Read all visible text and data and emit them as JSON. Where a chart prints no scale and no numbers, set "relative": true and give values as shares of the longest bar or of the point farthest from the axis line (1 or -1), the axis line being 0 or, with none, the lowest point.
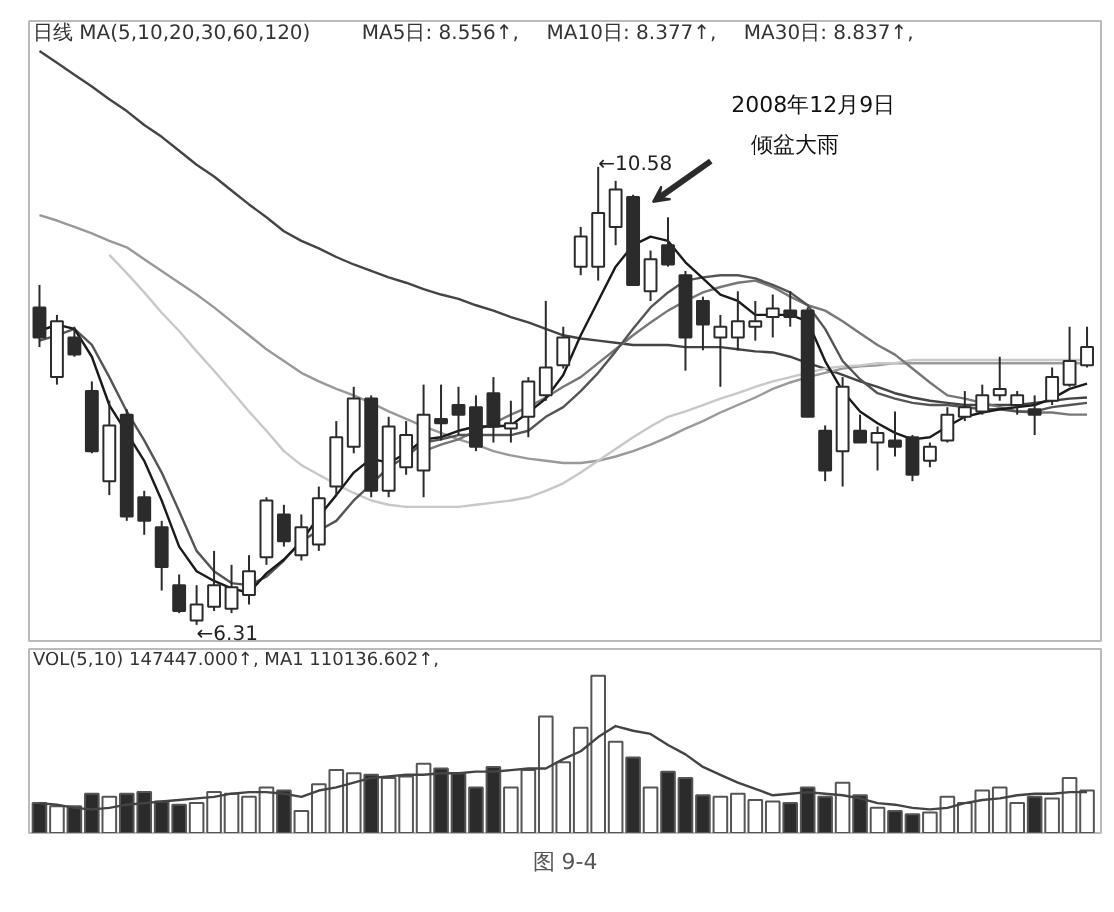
{
  "chart_data": [
    {
      "type": "candlestick",
      "tick_labels": false,
      "ylim": [
        6.16,
        11.94
      ],
      "categories": [
        null,
        null,
        null,
        null,
        null,
        null,
        null,
        null,
        null,
        null,
        null,
        null,
        null,
        null,
        null,
        null,
        null,
        null,
        null,
        null,
        null,
        null,
        null,
        null,
        null,
        null,
        null,
        null,
        null,
        null,
        null,
        null,
        null,
        null,
        null,
        null,
        null,
        null,
        null,
        null,
        null,
        null,
        null,
        null,
        null,
        null,
        null,
        null,
        null,
        null,
        null,
        null,
        null,
        null,
        null,
        null,
        null,
        null,
        null,
        null,
        null
      ],
      "ohlc": [
        [
          9.27,
          9.48,
          8.9,
          8.99
        ],
        [
          8.62,
          9.2,
          8.55,
          9.14
        ],
        [
          8.99,
          9.09,
          8.81,
          8.83
        ],
        [
          8.49,
          8.58,
          7.91,
          7.93
        ],
        [
          7.65,
          8.4,
          7.52,
          8.17
        ],
        [
          8.27,
          8.32,
          7.28,
          7.32
        ],
        [
          7.5,
          7.56,
          7.15,
          7.28
        ],
        [
          7.22,
          7.28,
          6.63,
          6.85
        ],
        [
          6.68,
          6.78,
          6.42,
          6.44
        ],
        [
          6.35,
          6.68,
          6.31,
          6.5
        ],
        [
          6.48,
          7.0,
          6.44,
          6.68
        ],
        [
          6.46,
          6.87,
          6.42,
          6.66
        ],
        [
          6.59,
          6.96,
          6.5,
          6.81
        ],
        [
          6.94,
          7.5,
          6.87,
          7.47
        ],
        [
          7.34,
          7.43,
          7.04,
          7.09
        ],
        [
          6.96,
          7.34,
          6.91,
          7.22
        ],
        [
          7.06,
          7.6,
          7.0,
          7.49
        ],
        [
          7.6,
          8.21,
          7.52,
          8.06
        ],
        [
          7.97,
          8.53,
          7.91,
          8.42
        ],
        [
          8.42,
          8.45,
          7.5,
          7.56
        ],
        [
          7.56,
          8.25,
          7.5,
          8.16
        ],
        [
          7.78,
          8.21,
          7.71,
          8.08
        ],
        [
          7.75,
          8.55,
          7.5,
          8.27
        ],
        [
          8.23,
          8.55,
          8.03,
          8.19
        ],
        [
          8.36,
          8.53,
          8.08,
          8.27
        ],
        [
          8.34,
          8.45,
          7.93,
          7.97
        ],
        [
          8.47,
          8.62,
          8.01,
          8.16
        ],
        [
          8.14,
          8.4,
          8.01,
          8.19
        ],
        [
          8.25,
          8.62,
          8.06,
          8.58
        ],
        [
          8.45,
          9.33,
          8.4,
          8.71
        ],
        [
          8.73,
          9.09,
          8.7,
          8.99
        ],
        [
          9.65,
          10.02,
          9.57,
          9.93
        ],
        [
          9.65,
          10.58,
          9.52,
          10.15
        ],
        [
          10.02,
          10.45,
          9.85,
          10.37
        ],
        [
          10.3,
          10.32,
          9.48,
          9.48
        ],
        [
          9.42,
          9.8,
          9.33,
          9.72
        ],
        [
          9.85,
          10.11,
          9.65,
          9.67
        ],
        [
          9.57,
          9.61,
          8.68,
          8.99
        ],
        [
          9.33,
          9.37,
          8.87,
          9.11
        ],
        [
          8.99,
          9.2,
          8.53,
          9.09
        ],
        [
          8.99,
          9.42,
          8.87,
          9.14
        ],
        [
          9.09,
          9.33,
          8.96,
          9.14
        ],
        [
          9.18,
          9.39,
          8.99,
          9.26
        ],
        [
          9.24,
          9.42,
          9.09,
          9.18
        ],
        [
          9.24,
          9.27,
          8.25,
          8.25
        ],
        [
          8.12,
          8.17,
          7.65,
          7.75
        ],
        [
          7.93,
          8.62,
          7.6,
          8.53
        ],
        [
          8.12,
          8.27,
          8.01,
          8.01
        ],
        [
          8.01,
          8.16,
          7.75,
          8.1
        ],
        [
          8.03,
          8.3,
          7.88,
          7.97
        ],
        [
          8.06,
          8.08,
          7.65,
          7.71
        ],
        [
          7.84,
          8.01,
          7.78,
          7.97
        ],
        [
          8.03,
          8.34,
          8.01,
          8.27
        ],
        [
          8.25,
          8.49,
          8.21,
          8.34
        ],
        [
          8.3,
          8.55,
          8.27,
          8.45
        ],
        [
          8.45,
          8.81,
          8.4,
          8.51
        ],
        [
          8.36,
          8.49,
          8.27,
          8.45
        ],
        [
          8.32,
          8.45,
          8.08,
          8.27
        ],
        [
          8.4,
          8.71,
          8.36,
          8.62
        ],
        [
          8.55,
          9.09,
          8.53,
          8.77
        ],
        [
          8.73,
          9.09,
          8.71,
          8.9
        ]
      ],
      "colors": [
        "#2b2b2b",
        "#ffffff",
        "#2b2b2b",
        "#2b2b2b",
        "#ffffff",
        "#2b2b2b",
        "#2b2b2b",
        "#2b2b2b",
        "#2b2b2b",
        "#ffffff",
        "#ffffff",
        "#ffffff",
        "#ffffff",
        "#ffffff",
        "#2b2b2b",
        "#ffffff",
        "#ffffff",
        "#ffffff",
        "#ffffff",
        "#2b2b2b",
        "#ffffff",
        "#ffffff",
        "#ffffff",
        "#2b2b2b",
        "#2b2b2b",
        "#2b2b2b",
        "#2b2b2b",
        "#ffffff",
        "#ffffff",
        "#ffffff",
        "#ffffff",
        "#ffffff",
        "#ffffff",
        "#ffffff",
        "#2b2b2b",
        "#ffffff",
        "#2b2b2b",
        "#2b2b2b",
        "#2b2b2b",
        "#ffffff",
        "#ffffff",
        "#ffffff",
        "#ffffff",
        "#2b2b2b",
        "#2b2b2b",
        "#2b2b2b",
        "#ffffff",
        "#2b2b2b",
        "#ffffff",
        "#2b2b2b",
        "#2b2b2b",
        "#ffffff",
        "#ffffff",
        "#ffffff",
        "#ffffff",
        "#ffffff",
        "#ffffff",
        "#2b2b2b",
        "#ffffff",
        "#ffffff",
        "#ffffff"
      ],
      "series": [
        {
          "type": "line",
          "color": "#444444",
          "values": [
            11.66,
            11.55,
            11.44,
            11.33,
            11.21,
            11.1,
            10.97,
            10.86,
            10.73,
            10.6,
            10.49,
            10.36,
            10.23,
            10.11,
            9.98,
            9.89,
            9.82,
            9.74,
            9.67,
            9.61,
            9.55,
            9.5,
            9.44,
            9.39,
            9.35,
            9.29,
            9.24,
            9.18,
            9.13,
            9.07,
            9.01,
            8.98,
            8.96,
            8.94,
            8.92,
            8.92,
            8.92,
            8.9,
            8.9,
            8.9,
            8.88,
            8.86,
            8.85,
            8.81,
            8.75,
            8.7,
            8.64,
            8.58,
            8.53,
            8.47,
            8.43,
            8.4,
            8.38,
            8.36,
            8.36,
            8.36,
            8.36,
            8.38,
            8.4,
            8.42,
            8.43
          ]
        },
        {
          "type": "line",
          "color": "#999999",
          "values": [
            10.13,
            10.08,
            10.02,
            9.96,
            9.89,
            9.83,
            9.72,
            9.61,
            9.5,
            9.39,
            9.27,
            9.14,
            9.01,
            8.88,
            8.77,
            8.66,
            8.58,
            8.51,
            8.45,
            8.38,
            8.3,
            8.23,
            8.16,
            8.1,
            8.04,
            7.99,
            7.93,
            7.89,
            7.86,
            7.84,
            7.82,
            7.82,
            7.84,
            7.88,
            7.93,
            7.99,
            8.06,
            8.14,
            8.21,
            8.29,
            8.36,
            8.43,
            8.51,
            8.57,
            8.62,
            8.66,
            8.7,
            8.72,
            8.73,
            8.75,
            8.75,
            8.75,
            8.75,
            8.75,
            8.75,
            8.75,
            8.75,
            8.75,
            8.75,
            8.75,
            8.75
          ]
        },
        {
          "type": "line",
          "color": "#c8c8c8",
          "values": [
            null,
            null,
            null,
            null,
            9.76,
            9.59,
            9.41,
            9.22,
            9.05,
            8.86,
            8.68,
            8.49,
            8.3,
            8.12,
            7.93,
            7.8,
            7.71,
            7.62,
            7.54,
            7.47,
            7.43,
            7.41,
            7.41,
            7.41,
            7.41,
            7.43,
            7.45,
            7.47,
            7.5,
            7.56,
            7.63,
            7.73,
            7.84,
            7.95,
            8.06,
            8.16,
            8.25,
            8.3,
            8.36,
            8.42,
            8.47,
            8.53,
            8.58,
            8.62,
            8.66,
            8.7,
            8.72,
            8.73,
            8.75,
            8.75,
            8.78,
            8.78,
            8.78,
            8.78,
            8.78,
            8.78,
            8.78,
            8.78,
            8.78,
            8.78,
            8.78
          ]
        },
        {
          "type": "line",
          "color": "#777777",
          "values": [
            null,
            null,
            null,
            null,
            null,
            null,
            null,
            null,
            null,
            null,
            null,
            null,
            null,
            null,
            null,
            null,
            null,
            null,
            null,
            null,
            null,
            null,
            7.93,
            7.99,
            8.04,
            8.12,
            8.19,
            8.27,
            8.34,
            8.43,
            8.53,
            8.62,
            8.75,
            8.88,
            9.01,
            9.13,
            9.24,
            9.33,
            9.41,
            9.46,
            9.5,
            9.52,
            9.46,
            9.37,
            9.29,
            9.24,
            9.14,
            9.03,
            8.92,
            8.83,
            8.7,
            8.57,
            8.45,
            8.42,
            8.38,
            8.34,
            8.3,
            8.29,
            8.29,
            8.27,
            8.27
          ]
        },
        {
          "type": "line",
          "color": "#555555",
          "values": [
            8.96,
            9.01,
            9.07,
            8.92,
            8.62,
            8.3,
            8.03,
            7.73,
            7.37,
            7.0,
            6.81,
            6.7,
            6.68,
            6.76,
            6.91,
            7.09,
            7.19,
            7.28,
            7.47,
            7.62,
            7.78,
            7.88,
            8.01,
            8.04,
            8.08,
            8.08,
            8.08,
            8.08,
            8.12,
            8.25,
            8.34,
            8.49,
            8.66,
            8.86,
            9.07,
            9.27,
            9.41,
            9.52,
            9.55,
            9.57,
            9.57,
            9.54,
            9.48,
            9.41,
            9.29,
            9.07,
            8.77,
            8.6,
            8.47,
            8.42,
            8.38,
            8.36,
            8.36,
            8.34,
            8.32,
            8.32,
            8.3,
            8.3,
            8.34,
            8.36,
            8.38
          ]
        },
        {
          "type": "line",
          "color": "#1a1a1a",
          "values": [
            9.05,
            9.11,
            9.07,
            8.81,
            8.36,
            8.1,
            7.84,
            7.47,
            7.04,
            6.81,
            6.72,
            6.65,
            6.61,
            6.79,
            6.92,
            7.09,
            7.32,
            7.52,
            7.73,
            7.86,
            7.82,
            7.91,
            8.04,
            8.06,
            8.12,
            8.16,
            8.16,
            8.17,
            8.29,
            8.42,
            8.64,
            9.01,
            9.33,
            9.65,
            9.85,
            9.93,
            9.89,
            9.69,
            9.54,
            9.39,
            9.33,
            9.2,
            9.2,
            9.2,
            9.14,
            8.77,
            8.49,
            8.3,
            8.19,
            8.1,
            8.04,
            8.06,
            8.16,
            8.25,
            8.29,
            8.32,
            8.34,
            8.36,
            8.42,
            8.51,
            8.56
          ]
        }
      ],
      "annotations": [
        "日线 MA(5,10,20,30,60,120)",
        "MA5日: 8.556↑,",
        "MA10日: 8.377↑,",
        "MA30日: 8.837↑,",
        "2008年12月9日",
        "倾盆大雨",
        "←10.58",
        "←6.31"
      ]
    },
    {
      "type": "bar",
      "relative": true,
      "tick_labels": false,
      "categories": [
        null,
        null,
        null,
        null,
        null,
        null,
        null,
        null,
        null,
        null,
        null,
        null,
        null,
        null,
        null,
        null,
        null,
        null,
        null,
        null,
        null,
        null,
        null,
        null,
        null,
        null,
        null,
        null,
        null,
        null,
        null,
        null,
        null,
        null,
        null,
        null,
        null,
        null,
        null,
        null,
        null,
        null,
        null,
        null,
        null,
        null,
        null,
        null,
        null,
        null,
        null,
        null,
        null,
        null,
        null,
        null,
        null,
        null,
        null,
        null,
        null
      ],
      "series": [
        {
          "type": "bar",
          "colors": [
            "#2b2b2b",
            "#ffffff",
            "#2b2b2b",
            "#2b2b2b",
            "#ffffff",
            "#2b2b2b",
            "#2b2b2b",
            "#2b2b2b",
            "#2b2b2b",
            "#ffffff",
            "#ffffff",
            "#ffffff",
            "#ffffff",
            "#ffffff",
            "#2b2b2b",
            "#ffffff",
            "#ffffff",
            "#ffffff",
            "#ffffff",
            "#2b2b2b",
            "#ffffff",
            "#ffffff",
            "#ffffff",
            "#2b2b2b",
            "#2b2b2b",
            "#2b2b2b",
            "#2b2b2b",
            "#ffffff",
            "#ffffff",
            "#ffffff",
            "#ffffff",
            "#ffffff",
            "#ffffff",
            "#ffffff",
            "#2b2b2b",
            "#ffffff",
            "#2b2b2b",
            "#2b2b2b",
            "#2b2b2b",
            "#ffffff",
            "#ffffff",
            "#ffffff",
            "#ffffff",
            "#2b2b2b",
            "#2b2b2b",
            "#2b2b2b",
            "#ffffff",
            "#2b2b2b",
            "#ffffff",
            "#2b2b2b",
            "#2b2b2b",
            "#ffffff",
            "#ffffff",
            "#ffffff",
            "#ffffff",
            "#ffffff",
            "#ffffff",
            "#2b2b2b",
            "#ffffff",
            "#ffffff",
            "#ffffff"
          ],
          "values": [
            0.19,
            0.17,
            0.17,
            0.25,
            0.23,
            0.25,
            0.26,
            0.2,
            0.18,
            0.19,
            0.26,
            0.25,
            0.23,
            0.29,
            0.27,
            0.14,
            0.31,
            0.4,
            0.38,
            0.37,
            0.35,
            0.36,
            0.44,
            0.41,
            0.38,
            0.29,
            0.42,
            0.29,
            0.4,
            0.74,
            0.45,
            0.67,
            1,
            0.58,
            0.48,
            0.29,
            0.39,
            0.35,
            0.24,
            0.23,
            0.25,
            0.21,
            0.2,
            0.19,
            0.29,
            0.23,
            0.32,
            0.24,
            0.16,
            0.14,
            0.12,
            0.13,
            0.23,
            0.19,
            0.27,
            0.29,
            0.19,
            0.23,
            0.22,
            0.35,
            0.27
          ]
        },
        {
          "type": "line",
          "color": "#444444",
          "values": [
            0.19,
            0.18,
            0.16,
            0.15,
            0.16,
            0.18,
            0.19,
            0.2,
            0.21,
            0.22,
            0.23,
            0.25,
            0.26,
            0.26,
            0.25,
            0.23,
            0.27,
            0.29,
            0.32,
            0.35,
            0.36,
            0.37,
            0.37,
            0.38,
            0.38,
            0.39,
            0.39,
            0.4,
            0.41,
            0.41,
            0.47,
            0.52,
            0.61,
            0.68,
            0.65,
            0.63,
            0.56,
            0.5,
            0.42,
            0.37,
            0.32,
            0.28,
            0.24,
            0.25,
            0.26,
            0.25,
            0.24,
            0.22,
            0.19,
            0.18,
            0.16,
            0.15,
            0.16,
            0.19,
            0.21,
            0.22,
            0.24,
            0.25,
            0.25,
            0.26,
            0.26
          ]
        }
      ],
      "annotations": [
        "VOL(5,10) 147447.000↑, MA1 110136.602↑,",
        "图 9-4"
      ]
    }
  ]
}
